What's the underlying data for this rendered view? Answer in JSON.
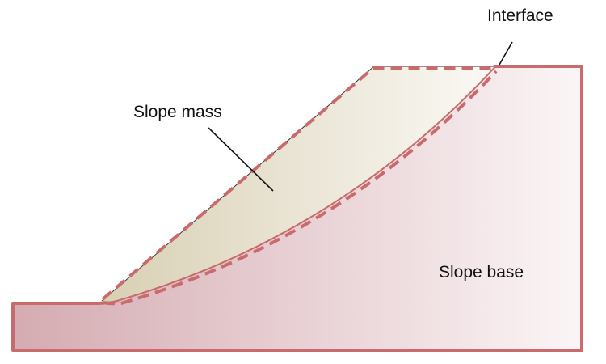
{
  "diagram": {
    "labels": {
      "interface": "Interface",
      "slope_mass": "Slope mass",
      "slope_base": "Slope base"
    },
    "colors": {
      "boundary": "#c96a6c",
      "base_fill_dark": "#d4abb1",
      "base_fill_light": "#fbf5f6",
      "mass_fill_dark": "#d8d0b4",
      "mass_fill_light": "#fbf9f5",
      "leader_line": "#111111"
    }
  }
}
